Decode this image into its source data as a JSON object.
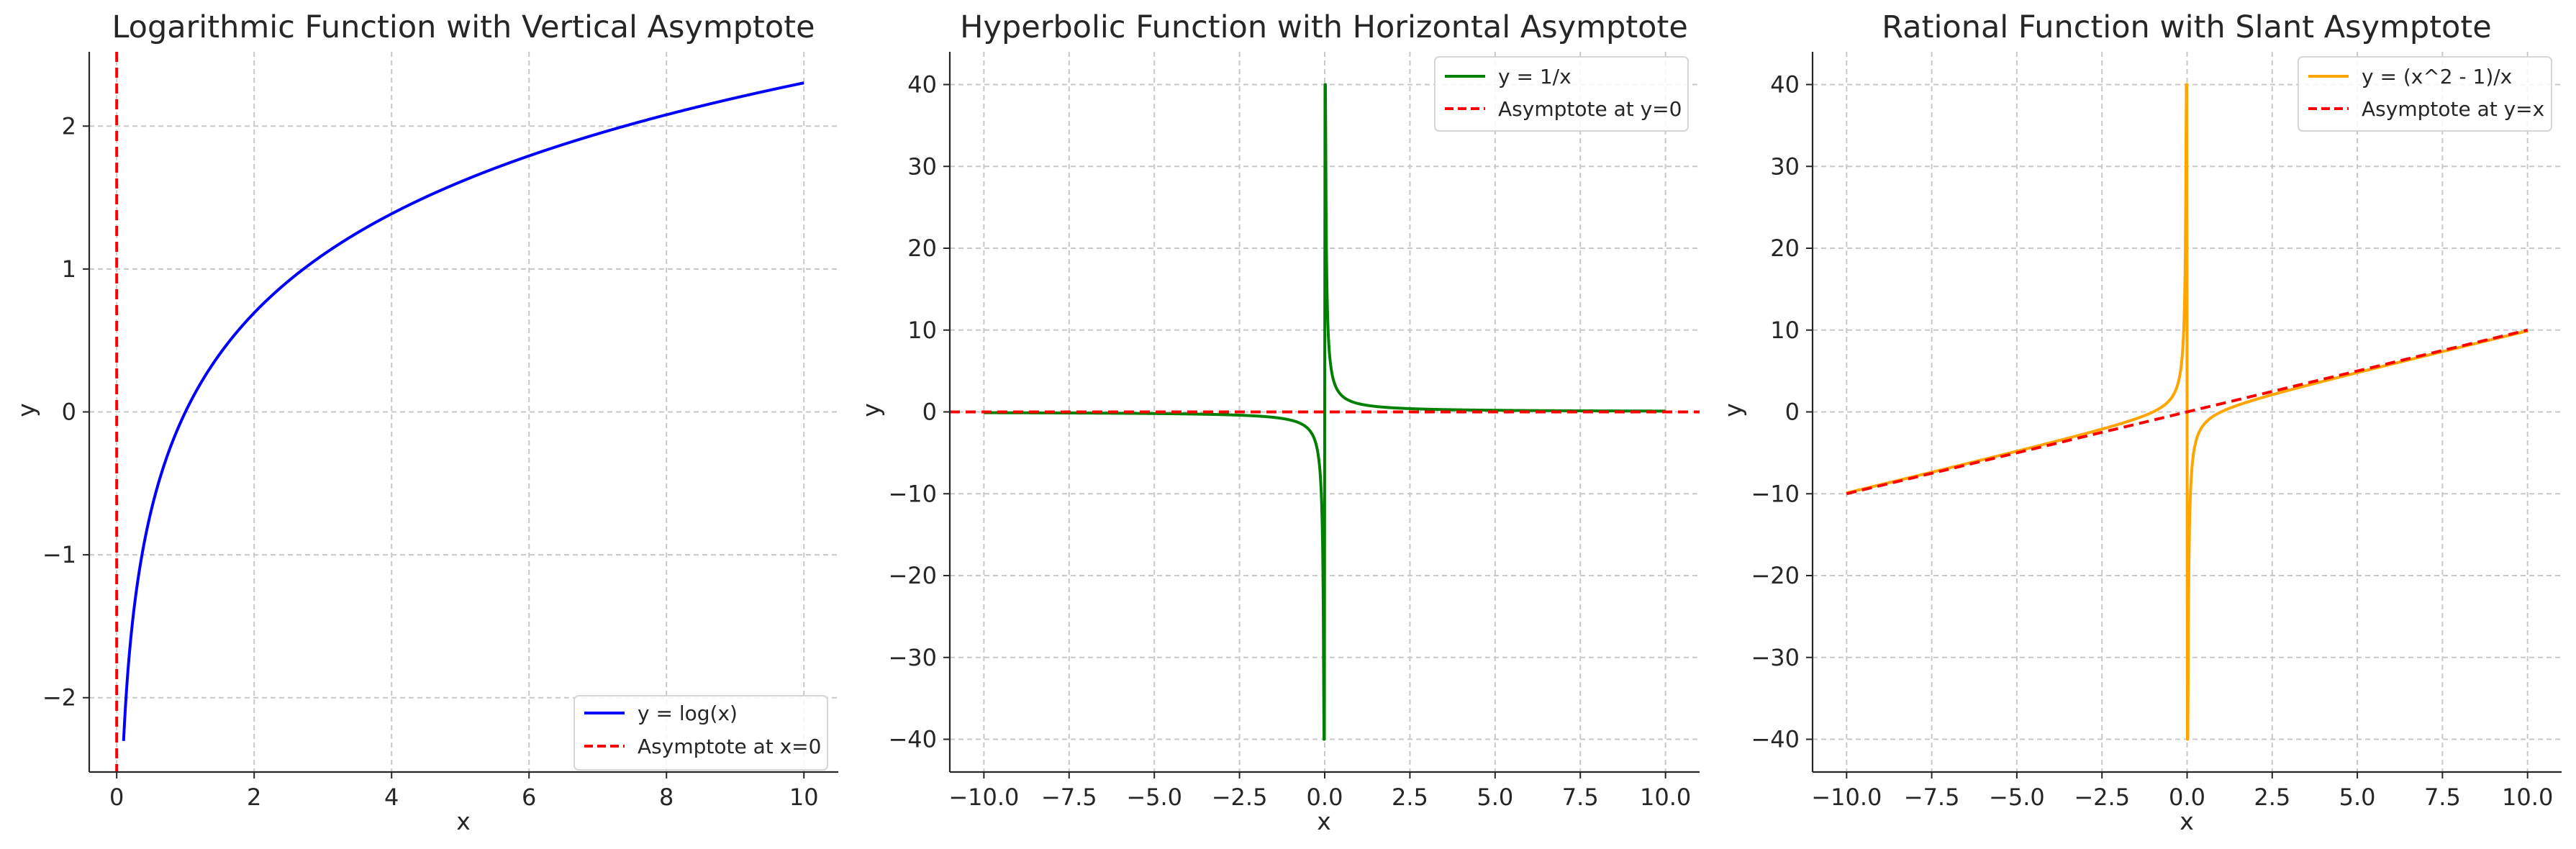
{
  "chart_data": [
    {
      "type": "line",
      "title": "Logarithmic Function with Vertical Asymptote",
      "xlabel": "x",
      "ylabel": "y",
      "xlim": [
        -0.4,
        10.5
      ],
      "ylim": [
        -2.52,
        2.52
      ],
      "xticks": [
        0,
        2,
        4,
        6,
        8,
        10
      ],
      "xtick_labels": [
        "0",
        "2",
        "4",
        "6",
        "8",
        "10"
      ],
      "yticks": [
        -2,
        -1,
        0,
        1,
        2
      ],
      "ytick_labels": [
        "−2",
        "−1",
        "0",
        "1",
        "2"
      ],
      "grid": true,
      "legend_position": "lower-right",
      "series": [
        {
          "name": "y = log(x)",
          "color": "#0000ff",
          "style": "solid",
          "function": "log(x)",
          "x_range": [
            0.1,
            10
          ]
        }
      ],
      "asymptote": {
        "name": "Asymptote at x=0",
        "color": "#ff0000",
        "style": "dashed",
        "orientation": "vertical",
        "value": 0
      }
    },
    {
      "type": "line",
      "title": "Hyperbolic Function with Horizontal Asymptote",
      "xlabel": "x",
      "ylabel": "y",
      "xlim": [
        -11,
        11
      ],
      "ylim": [
        -44,
        44
      ],
      "xticks": [
        -10,
        -7.5,
        -5,
        -2.5,
        0,
        2.5,
        5,
        7.5,
        10
      ],
      "xtick_labels": [
        "−10.0",
        "−7.5",
        "−5.0",
        "−2.5",
        "0.0",
        "2.5",
        "5.0",
        "7.5",
        "10.0"
      ],
      "yticks": [
        -40,
        -30,
        -20,
        -10,
        0,
        10,
        20,
        30,
        40
      ],
      "ytick_labels": [
        "−40",
        "−30",
        "−20",
        "−10",
        "0",
        "10",
        "20",
        "30",
        "40"
      ],
      "grid": true,
      "legend_position": "upper-right",
      "series": [
        {
          "name": "y = 1/x",
          "color": "#008000",
          "style": "solid",
          "function": "1/x",
          "x_range": [
            -10,
            10
          ],
          "y_clip": [
            -40,
            40
          ]
        }
      ],
      "asymptote": {
        "name": "Asymptote at y=0",
        "color": "#ff0000",
        "style": "dashed",
        "orientation": "horizontal",
        "value": 0
      }
    },
    {
      "type": "line",
      "title": "Rational Function with Slant Asymptote",
      "xlabel": "x",
      "ylabel": "y",
      "xlim": [
        -11,
        11
      ],
      "ylim": [
        -44,
        44
      ],
      "xticks": [
        -10,
        -7.5,
        -5,
        -2.5,
        0,
        2.5,
        5,
        7.5,
        10
      ],
      "xtick_labels": [
        "−10.0",
        "−7.5",
        "−5.0",
        "−2.5",
        "0.0",
        "2.5",
        "5.0",
        "7.5",
        "10.0"
      ],
      "yticks": [
        -40,
        -30,
        -20,
        -10,
        0,
        10,
        20,
        30,
        40
      ],
      "ytick_labels": [
        "−40",
        "−30",
        "−20",
        "−10",
        "0",
        "10",
        "20",
        "30",
        "40"
      ],
      "grid": true,
      "legend_position": "upper-right",
      "series": [
        {
          "name": "y = (x^2 - 1)/x",
          "color": "#ffa500",
          "style": "solid",
          "function": "(x^2 - 1)/x",
          "x_range": [
            -10,
            10
          ],
          "y_clip": [
            -40,
            40
          ]
        }
      ],
      "asymptote": {
        "name": "Asymptote at y=x",
        "color": "#ff0000",
        "style": "dashed",
        "orientation": "slant",
        "slope": 1,
        "intercept": 0,
        "x_range": [
          -10,
          10
        ]
      }
    }
  ]
}
